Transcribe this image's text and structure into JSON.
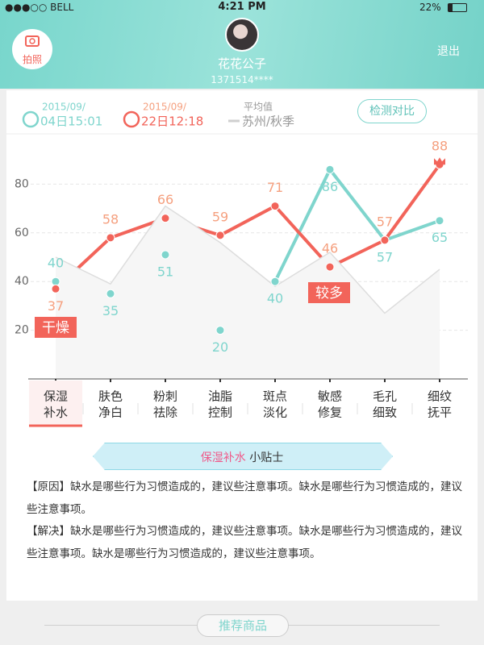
{
  "status_bar": {
    "carrier": "●●●○○ BELL",
    "time": "4:21 PM",
    "battery": "22%"
  },
  "header": {
    "camera_label": "拍照",
    "user_name": "花花公子",
    "phone": "1371514****",
    "logout": "退出"
  },
  "compare_button": "检测对比",
  "chart_data": {
    "type": "line",
    "categories": [
      [
        "保湿",
        "补水"
      ],
      [
        "肤色",
        "净白"
      ],
      [
        "粉刺",
        "祛除"
      ],
      [
        "油脂",
        "控制"
      ],
      [
        "斑点",
        "淡化"
      ],
      [
        "敏感",
        "修复"
      ],
      [
        "毛孔",
        "细致"
      ],
      [
        "细纹",
        "抚平"
      ]
    ],
    "selected_category": 0,
    "series": [
      {
        "name": [
          "2015/09/",
          "04日15:01"
        ],
        "color": "#7fd5cd",
        "label_color": "#7fd5cd",
        "values": [
          40,
          35,
          51,
          20,
          40,
          86,
          57,
          65
        ]
      },
      {
        "name": [
          "2015/09/",
          "22日12:18"
        ],
        "color": "#f2645a",
        "label_color": "#f5a07f",
        "values": [
          37,
          58,
          66,
          59,
          71,
          46,
          57,
          88
        ]
      },
      {
        "name": [
          "平均值",
          "苏州/秋季"
        ],
        "color": "#dddddd",
        "area": true,
        "values": [
          50,
          39,
          71,
          56,
          38,
          52,
          27,
          45
        ]
      }
    ],
    "annotations": [
      "干燥",
      "较多"
    ],
    "ylim": [
      0,
      100
    ],
    "yticks": [
      20,
      40,
      60,
      80
    ],
    "grid": true
  },
  "tips": {
    "title": "保湿补水",
    "title_suffix": "小贴士",
    "paragraphs": [
      "【原因】缺水是哪些行为习惯造成的，建议些注意事项。缺水是哪些行为习惯造成的，建议些注意事项。",
      "【解决】缺水是哪些行为习惯造成的，建议些注意事项。缺水是哪些行为习惯造成的，建议些注意事项。缺水是哪些行为习惯造成的，建议些注意事项。"
    ]
  },
  "footer": {
    "button": "推荐商品"
  }
}
